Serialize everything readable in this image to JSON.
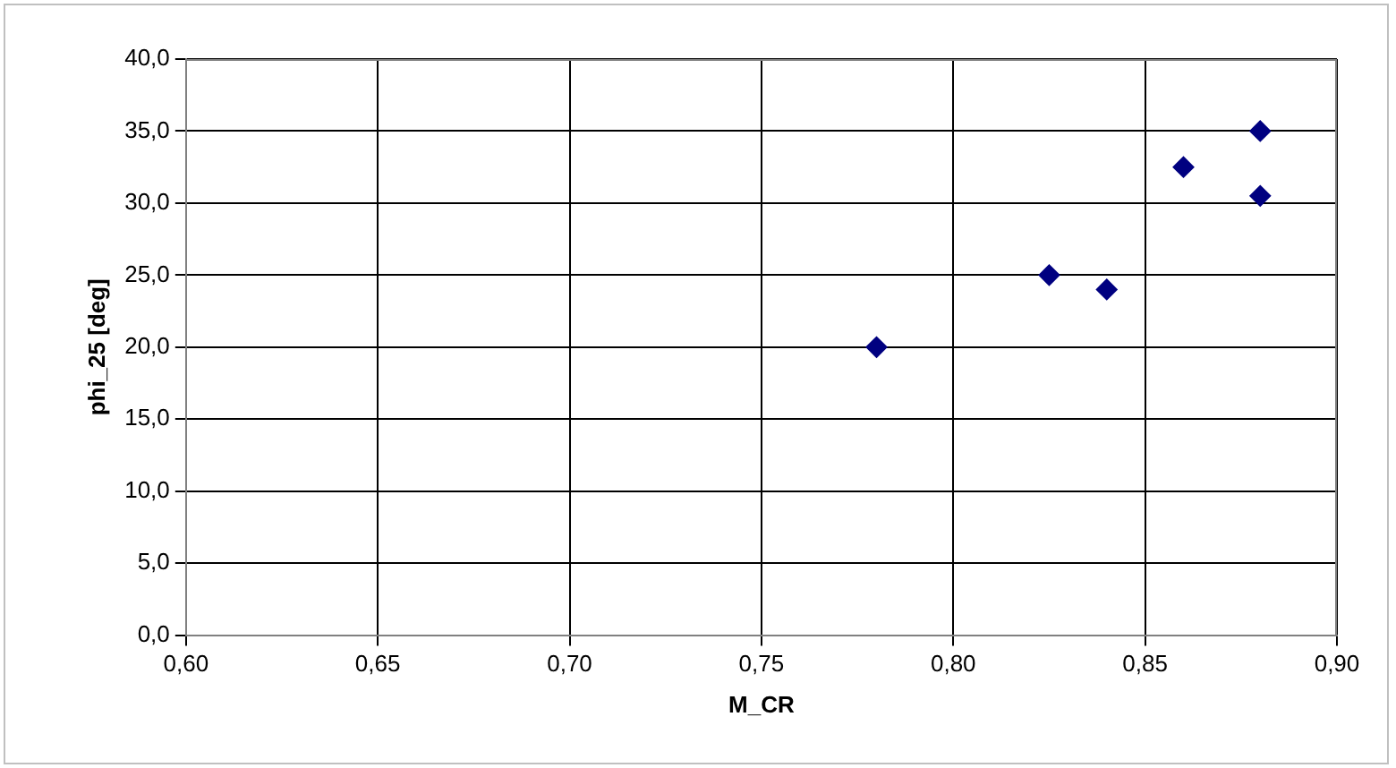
{
  "chart_data": {
    "type": "scatter",
    "xlabel": "M_CR",
    "ylabel": "phi_25 [deg]",
    "x": [
      0.78,
      0.825,
      0.84,
      0.86,
      0.88,
      0.88
    ],
    "series": [
      {
        "color": "#000080",
        "values": [
          20,
          25,
          24,
          32.5,
          35,
          30.5
        ]
      }
    ],
    "xlim": [
      0.6,
      0.9
    ],
    "xticks": [
      {
        "value": 0.6,
        "label": "0,60"
      },
      {
        "value": 0.65,
        "label": "0,65"
      },
      {
        "value": 0.7,
        "label": "0,70"
      },
      {
        "value": 0.75,
        "label": "0,75"
      },
      {
        "value": 0.8,
        "label": "0,80"
      },
      {
        "value": 0.85,
        "label": "0,85"
      },
      {
        "value": 0.9,
        "label": "0,90"
      }
    ],
    "ylim": [
      0,
      40
    ],
    "yticks": [
      {
        "value": 0,
        "label": "0,0"
      },
      {
        "value": 5,
        "label": "5,0"
      },
      {
        "value": 10,
        "label": "10,0"
      },
      {
        "value": 15,
        "label": "15,0"
      },
      {
        "value": 20,
        "label": "20,0"
      },
      {
        "value": 25,
        "label": "25,0"
      },
      {
        "value": 30,
        "label": "30,0"
      },
      {
        "value": 35,
        "label": "35,0"
      },
      {
        "value": 40,
        "label": "40,0"
      }
    ],
    "grid": true,
    "legend": false,
    "marker": "diamond"
  }
}
